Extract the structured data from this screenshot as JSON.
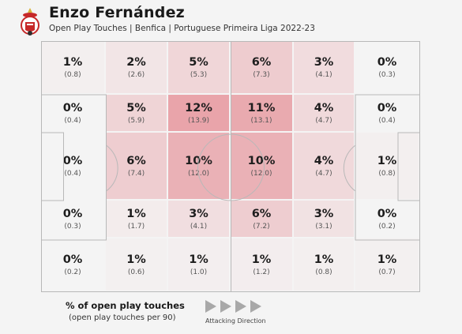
{
  "header": {
    "title": "Enzo Fernández",
    "subtitle": "Open Play Touches | Benfica | Portuguese Primeira Liga 2022-23",
    "crest_icon": "benfica-crest-icon"
  },
  "grid": {
    "rows": [
      [
        {
          "pct": "1%",
          "per90": "(0.8)",
          "heat": 0.06
        },
        {
          "pct": "2%",
          "per90": "(2.6)",
          "heat": 0.18
        },
        {
          "pct": "5%",
          "per90": "(5.3)",
          "heat": 0.36
        },
        {
          "pct": "6%",
          "per90": "(7.3)",
          "heat": 0.48
        },
        {
          "pct": "3%",
          "per90": "(4.1)",
          "heat": 0.28
        },
        {
          "pct": "0%",
          "per90": "(0.3)",
          "heat": 0.0
        }
      ],
      [
        {
          "pct": "0%",
          "per90": "(0.4)",
          "heat": 0.0
        },
        {
          "pct": "5%",
          "per90": "(5.9)",
          "heat": 0.38
        },
        {
          "pct": "12%",
          "per90": "(13.9)",
          "heat": 0.95
        },
        {
          "pct": "11%",
          "per90": "(13.1)",
          "heat": 0.88
        },
        {
          "pct": "4%",
          "per90": "(4.7)",
          "heat": 0.32
        },
        {
          "pct": "0%",
          "per90": "(0.4)",
          "heat": 0.0
        }
      ],
      [
        {
          "pct": "0%",
          "per90": "(0.4)",
          "heat": 0.0
        },
        {
          "pct": "6%",
          "per90": "(7.4)",
          "heat": 0.46
        },
        {
          "pct": "10%",
          "per90": "(12.0)",
          "heat": 0.8
        },
        {
          "pct": "10%",
          "per90": "(12.0)",
          "heat": 0.8
        },
        {
          "pct": "4%",
          "per90": "(4.7)",
          "heat": 0.32
        },
        {
          "pct": "1%",
          "per90": "(0.8)",
          "heat": 0.06
        }
      ],
      [
        {
          "pct": "0%",
          "per90": "(0.3)",
          "heat": 0.0
        },
        {
          "pct": "1%",
          "per90": "(1.7)",
          "heat": 0.1
        },
        {
          "pct": "3%",
          "per90": "(4.1)",
          "heat": 0.26
        },
        {
          "pct": "6%",
          "per90": "(7.2)",
          "heat": 0.46
        },
        {
          "pct": "3%",
          "per90": "(3.1)",
          "heat": 0.22
        },
        {
          "pct": "0%",
          "per90": "(0.2)",
          "heat": 0.0
        }
      ],
      [
        {
          "pct": "0%",
          "per90": "(0.2)",
          "heat": 0.0
        },
        {
          "pct": "1%",
          "per90": "(0.6)",
          "heat": 0.05
        },
        {
          "pct": "1%",
          "per90": "(1.0)",
          "heat": 0.07
        },
        {
          "pct": "1%",
          "per90": "(1.2)",
          "heat": 0.08
        },
        {
          "pct": "1%",
          "per90": "(0.8)",
          "heat": 0.06
        },
        {
          "pct": "1%",
          "per90": "(0.7)",
          "heat": 0.05
        }
      ]
    ]
  },
  "legend": {
    "title": "% of open play touches",
    "subtitle": "(open play touches per 90)",
    "arrow_label": "Attacking Direction",
    "arrow_icon": "play-arrow-icon"
  },
  "colors": {
    "heat_max": "#e8a0a6",
    "heat_min": "#f4f4f4",
    "lines": "#b8b8b8"
  }
}
